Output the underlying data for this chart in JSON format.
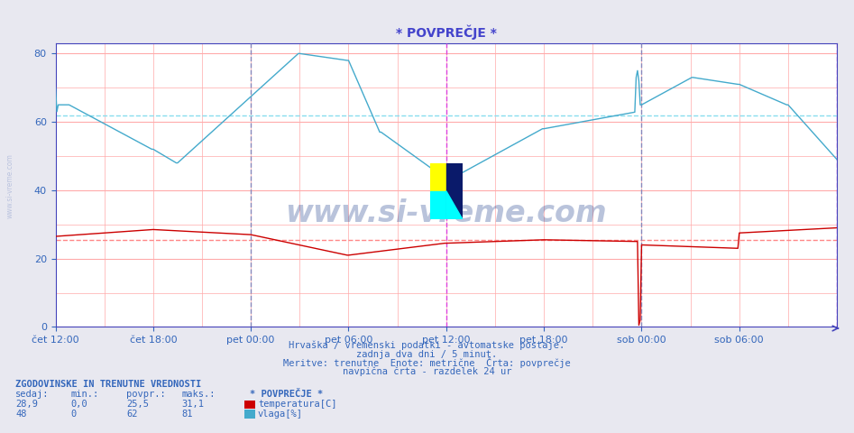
{
  "title": "* POVPREČJE *",
  "title_color": "#4444cc",
  "bg_color": "#e8e8f0",
  "plot_bg_color": "#ffffff",
  "grid_color": "#ffaaaa",
  "grid_color_minor": "#ffdddd",
  "ylim": [
    0,
    83
  ],
  "yticks": [
    0,
    20,
    40,
    60,
    80
  ],
  "axis_color": "#4444bb",
  "tick_color": "#3366bb",
  "xtick_labels": [
    "čet 12:00",
    "čet 18:00",
    "pet 00:00",
    "pet 06:00",
    "pet 12:00",
    "pet 18:00",
    "sob 00:00",
    "sob 06:00"
  ],
  "xtick_positions": [
    0,
    72,
    144,
    216,
    288,
    360,
    432,
    504
  ],
  "total_points": 577,
  "vline_midnight_color": "#8888bb",
  "vline_noon_color": "#dd44dd",
  "avg_temp": 25.5,
  "avg_hum": 62,
  "avg_temp_color": "#ff8888",
  "avg_hum_color": "#88ddee",
  "temp_color": "#cc0000",
  "hum_color": "#44aacc",
  "bottom_text1": "Hrvaška / vremenski podatki - avtomatske postaje.",
  "bottom_text2": "zadnja dva dni / 5 minut.",
  "bottom_text3": "Meritve: trenutne  Enote: metrične  Črta: povprečje",
  "bottom_text4": "navpična črta - razdelek 24 ur",
  "text_color": "#3366bb",
  "legend_title": "ZGODOVINSKE IN TRENUTNE VREDNOSTI",
  "legend_headers": [
    "sedaj:",
    "min.:",
    "povpr.:",
    "maks.:"
  ],
  "legend_temp_values": [
    "28,9",
    "0,0",
    "25,5",
    "31,1"
  ],
  "legend_hum_values": [
    "48",
    "0",
    "62",
    "81"
  ],
  "legend_series": "* POVPREČJE *",
  "watermark_text": "www.si-vreme.com",
  "watermark_color": "#1a3a8a",
  "watermark_alpha": 0.3,
  "sivreme_color": "#3355aa",
  "sivreme_alpha": 0.25
}
